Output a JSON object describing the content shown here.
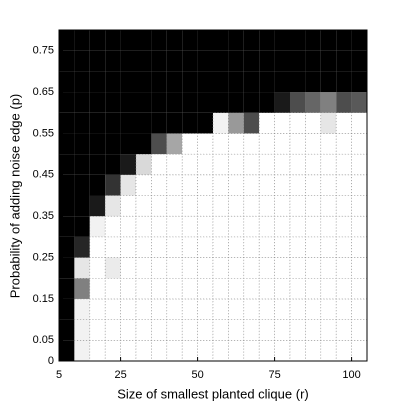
{
  "chart_data": {
    "type": "heatmap",
    "xlabel": "Size of smallest planted clique (r)",
    "ylabel": "Probability of adding noise edge (p)",
    "x": [
      5,
      10,
      15,
      20,
      25,
      30,
      35,
      40,
      45,
      50,
      55,
      60,
      65,
      70,
      75,
      80,
      85,
      90,
      95,
      100
    ],
    "y": [
      0,
      0.05,
      0.1,
      0.15,
      0.2,
      0.25,
      0.3,
      0.35,
      0.4,
      0.45,
      0.5,
      0.55,
      0.6,
      0.65,
      0.7,
      0.75
    ],
    "z": [
      [
        0,
        0.95,
        1,
        1,
        1,
        1,
        1,
        1,
        1,
        1,
        1,
        1,
        1,
        1,
        1,
        1,
        1,
        1,
        1,
        1
      ],
      [
        0,
        0.95,
        1,
        1,
        1,
        1,
        1,
        1,
        1,
        1,
        1,
        1,
        1,
        1,
        1,
        1,
        1,
        1,
        1,
        1
      ],
      [
        0,
        0.95,
        1,
        1,
        1,
        1,
        1,
        1,
        1,
        1,
        1,
        1,
        1,
        1,
        1,
        1,
        1,
        1,
        1,
        1
      ],
      [
        0,
        0.5,
        1,
        1,
        1,
        1,
        1,
        1,
        1,
        1,
        1,
        1,
        1,
        1,
        1,
        1,
        1,
        1,
        1,
        1
      ],
      [
        0,
        0.9,
        1,
        0.92,
        1,
        1,
        1,
        1,
        1,
        1,
        1,
        1,
        1,
        1,
        1,
        1,
        1,
        1,
        1,
        1
      ],
      [
        0,
        0.15,
        1,
        1,
        1,
        1,
        1,
        1,
        1,
        1,
        1,
        1,
        1,
        1,
        1,
        1,
        1,
        1,
        1,
        1
      ],
      [
        0,
        0,
        0.95,
        1,
        1,
        1,
        1,
        1,
        1,
        1,
        1,
        1,
        1,
        1,
        1,
        1,
        1,
        1,
        1,
        1
      ],
      [
        0,
        0,
        0.1,
        0.9,
        1,
        1,
        1,
        1,
        1,
        1,
        1,
        1,
        1,
        1,
        1,
        1,
        1,
        1,
        1,
        1
      ],
      [
        0,
        0,
        0,
        0.2,
        0.9,
        1,
        1,
        1,
        1,
        1,
        1,
        1,
        1,
        1,
        1,
        1,
        1,
        1,
        1,
        1
      ],
      [
        0,
        0,
        0,
        0,
        0.1,
        0.85,
        1,
        1,
        1,
        1,
        1,
        1,
        1,
        1,
        1,
        1,
        1,
        1,
        1,
        1
      ],
      [
        0,
        0,
        0,
        0,
        0,
        0,
        0.3,
        0.65,
        1,
        1,
        1,
        1,
        1,
        1,
        1,
        1,
        1,
        1,
        1,
        1
      ],
      [
        0,
        0,
        0,
        0,
        0,
        0,
        0,
        0,
        0,
        0,
        0.95,
        0.6,
        0.3,
        1,
        1,
        1,
        1,
        0.9,
        1,
        1
      ],
      [
        0,
        0,
        0,
        0,
        0,
        0,
        0,
        0,
        0,
        0,
        0,
        0,
        0,
        0,
        0.1,
        0.3,
        0.4,
        0.5,
        0.3,
        0.35
      ],
      [
        0,
        0,
        0,
        0,
        0,
        0,
        0,
        0,
        0,
        0,
        0,
        0,
        0,
        0,
        0,
        0,
        0,
        0,
        0,
        0
      ],
      [
        0,
        0,
        0,
        0,
        0,
        0,
        0,
        0,
        0,
        0,
        0,
        0,
        0,
        0,
        0,
        0,
        0,
        0,
        0,
        0
      ],
      [
        0,
        0,
        0,
        0,
        0,
        0,
        0,
        0,
        0,
        0,
        0,
        0,
        0,
        0,
        0,
        0,
        0,
        0,
        0,
        0
      ]
    ],
    "xlim": [
      5,
      105
    ],
    "ylim": [
      0,
      0.8
    ],
    "xticks": [
      5,
      25,
      50,
      75,
      100
    ],
    "yticks": [
      0,
      0.05,
      0.15,
      0.25,
      0.35,
      0.45,
      0.55,
      0.65,
      0.75
    ]
  }
}
